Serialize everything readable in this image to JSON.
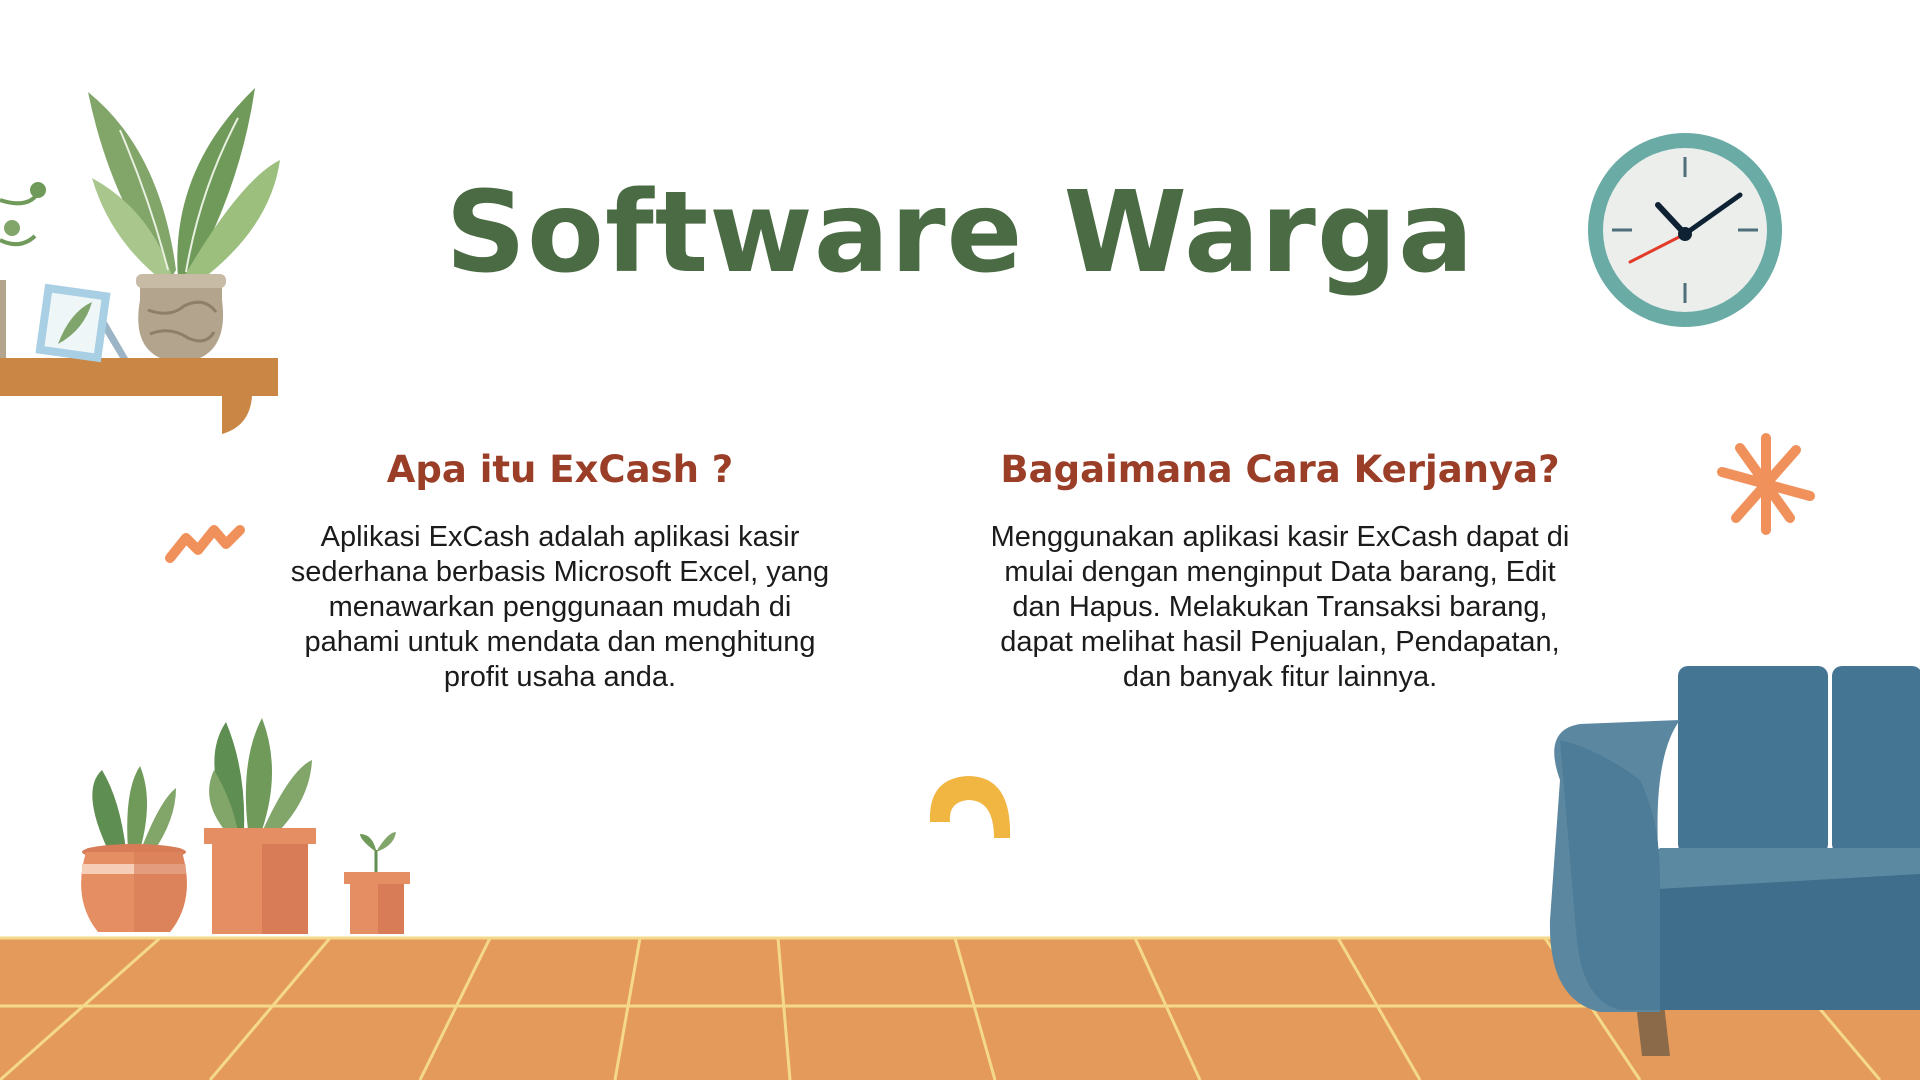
{
  "slide": {
    "title": "Software Warga",
    "left": {
      "heading": "Apa itu ExCash ?",
      "body": "Aplikasi ExCash adalah aplikasi kasir sederhana berbasis Microsoft Excel, yang menawarkan penggunaan mudah di pahami untuk mendata dan menghitung profit usaha anda."
    },
    "right": {
      "heading": "Bagaimana Cara Kerjanya?",
      "body": "Menggunakan aplikasi kasir ExCash dapat di mulai dengan menginput Data barang, Edit dan Hapus. Melakukan Transaksi barang, dapat melihat hasil Penjualan, Pendapatan, dan banyak fitur lainnya."
    }
  },
  "colors": {
    "title": "#4a6b44",
    "heading": "#9b3e27",
    "floor": "#e49a5a",
    "floor_lines": "#f5d98a",
    "sofa": "#447593",
    "clock_rim": "#6aaba6",
    "shelf": "#c98645"
  },
  "decorations": [
    "plant-icon",
    "picture-frame-icon",
    "shelf-icon",
    "clock-icon",
    "sparkle-icon",
    "zigzag-icon",
    "arch-icon",
    "potted-plants-icon",
    "sofa-icon",
    "tiled-floor"
  ]
}
